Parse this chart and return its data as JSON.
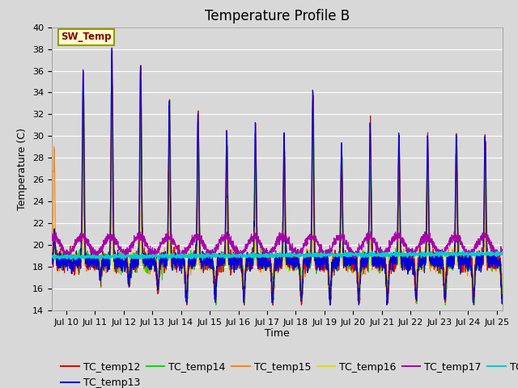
{
  "title": "Temperature Profile B",
  "xlabel": "Time",
  "ylabel": "Temperature (C)",
  "ylim": [
    14,
    40
  ],
  "yticks": [
    14,
    16,
    18,
    20,
    22,
    24,
    26,
    28,
    30,
    32,
    34,
    36,
    38,
    40
  ],
  "xlim_start": 9.5,
  "xlim_end": 25.2,
  "xtick_labels": [
    "Jul 10",
    "Jul 11",
    "Jul 12",
    "Jul 13",
    "Jul 14",
    "Jul 15",
    "Jul 16",
    "Jul 17",
    "Jul 18",
    "Jul 19",
    "Jul 20",
    "Jul 21",
    "Jul 22",
    "Jul 23",
    "Jul 24",
    "Jul 25"
  ],
  "xtick_positions": [
    10,
    11,
    12,
    13,
    14,
    15,
    16,
    17,
    18,
    19,
    20,
    21,
    22,
    23,
    24,
    25
  ],
  "sw_temp_annotation": "SW_Temp",
  "series_colors": {
    "TC_temp12": "#dd0000",
    "TC_temp13": "#0000dd",
    "TC_temp14": "#00dd00",
    "TC_temp15": "#ff8800",
    "TC_temp16": "#dddd00",
    "TC_temp17": "#aa00aa",
    "TC_temp18": "#00cccc"
  },
  "background_color": "#d8d8d8",
  "plot_bg_color": "#d8d8d8",
  "grid_color": "#ffffff",
  "fig_bg_color": "#d8d8d8",
  "title_fontsize": 12,
  "axis_label_fontsize": 9,
  "tick_fontsize": 8,
  "legend_fontsize": 9
}
